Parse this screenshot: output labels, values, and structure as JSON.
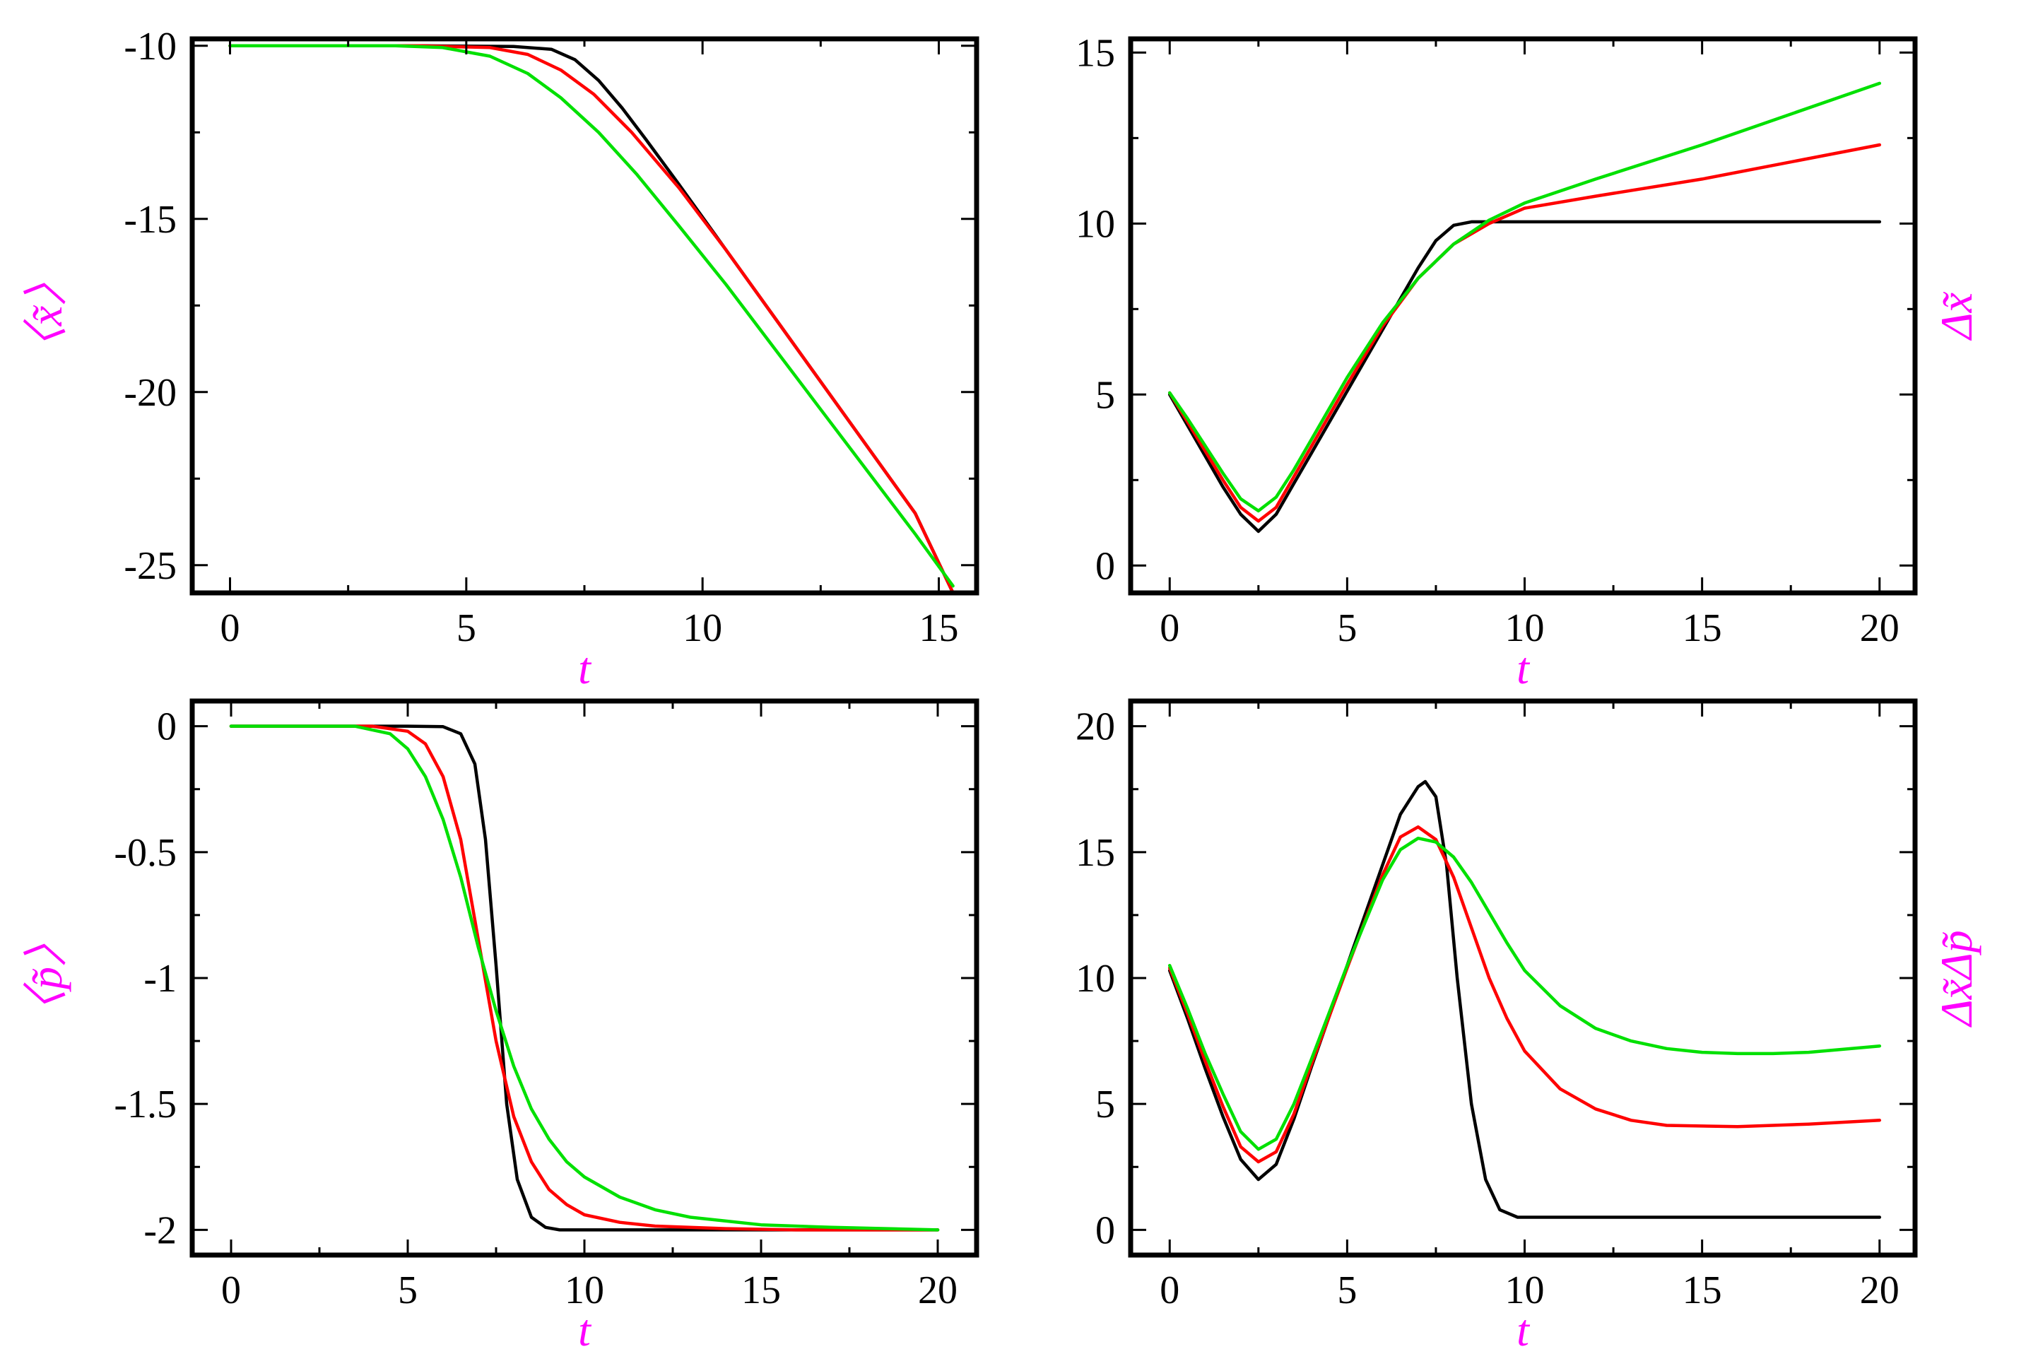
{
  "label_color": "#ff00ff",
  "series_colors": [
    "#000000",
    "#ff0000",
    "#00e000"
  ],
  "chart_data": [
    {
      "type": "line",
      "panel": "top-left",
      "xlabel": "t",
      "ylabel": "〈x̃〉",
      "ylabel_side": "left",
      "xlim": [
        -0.8,
        15.8
      ],
      "ylim": [
        -25.8,
        -9.8
      ],
      "xticks": [
        0,
        5,
        10,
        15
      ],
      "yticks": [
        -10,
        -15,
        -20,
        -25
      ],
      "grid": false,
      "series": [
        {
          "x": [
            0,
            4,
            6,
            6.8,
            7.3,
            7.8,
            8.3,
            8.8,
            9.5,
            10.5,
            11.5,
            12.5,
            13.5,
            14.5,
            15.3
          ],
          "y": [
            -10,
            -10,
            -10.02,
            -10.1,
            -10.4,
            -11.0,
            -11.8,
            -12.7,
            -14.0,
            -15.9,
            -17.8,
            -19.7,
            -21.6,
            -23.5,
            -25.8
          ]
        },
        {
          "x": [
            0,
            4,
            5.5,
            6.3,
            7,
            7.7,
            8.5,
            9.5,
            10.5,
            11.5,
            12.5,
            13.5,
            14.5,
            15.3
          ],
          "y": [
            -10,
            -10,
            -10.05,
            -10.25,
            -10.7,
            -11.4,
            -12.5,
            -14.1,
            -15.9,
            -17.8,
            -19.7,
            -21.6,
            -23.5,
            -25.8
          ]
        },
        {
          "x": [
            0,
            3.5,
            4.5,
            5.5,
            6.3,
            7,
            7.8,
            8.6,
            9.5,
            10.5,
            11.5,
            12.5,
            13.5,
            14.5,
            15.3
          ],
          "y": [
            -10,
            -10,
            -10.05,
            -10.3,
            -10.8,
            -11.5,
            -12.5,
            -13.7,
            -15.2,
            -16.9,
            -18.7,
            -20.5,
            -22.3,
            -24.1,
            -25.6
          ]
        }
      ]
    },
    {
      "type": "line",
      "panel": "top-right",
      "xlabel": "t",
      "ylabel": "Δx̃",
      "ylabel_side": "right",
      "xlim": [
        -1.1,
        21
      ],
      "ylim": [
        -0.8,
        15.4
      ],
      "xticks": [
        0,
        5,
        10,
        15,
        20
      ],
      "yticks": [
        0,
        5,
        10,
        15
      ],
      "grid": false,
      "series": [
        {
          "x": [
            0,
            0.5,
            1,
            1.5,
            2,
            2.5,
            3,
            3.5,
            4,
            5,
            6,
            7,
            7.5,
            8,
            8.5,
            9,
            10,
            15,
            20
          ],
          "y": [
            5.0,
            4.1,
            3.2,
            2.3,
            1.5,
            1.0,
            1.5,
            2.4,
            3.3,
            5.1,
            6.9,
            8.7,
            9.5,
            9.95,
            10.05,
            10.05,
            10.05,
            10.05,
            10.05
          ]
        },
        {
          "x": [
            0,
            0.5,
            1,
            1.5,
            2,
            2.5,
            3,
            3.5,
            4,
            5,
            6,
            7,
            8,
            9,
            10,
            12,
            15,
            20
          ],
          "y": [
            5.05,
            4.2,
            3.35,
            2.5,
            1.7,
            1.3,
            1.7,
            2.6,
            3.5,
            5.3,
            7.0,
            8.4,
            9.4,
            10.0,
            10.45,
            10.8,
            11.3,
            12.3
          ]
        },
        {
          "x": [
            0,
            0.5,
            1,
            1.5,
            2,
            2.5,
            3,
            3.5,
            4,
            5,
            6,
            7,
            8,
            9,
            10,
            12,
            15,
            20
          ],
          "y": [
            5.05,
            4.3,
            3.5,
            2.7,
            1.95,
            1.6,
            2.0,
            2.8,
            3.7,
            5.5,
            7.1,
            8.4,
            9.4,
            10.1,
            10.6,
            11.3,
            12.3,
            14.1
          ]
        }
      ]
    },
    {
      "type": "line",
      "panel": "bottom-left",
      "xlabel": "t",
      "ylabel": "〈p̃〉",
      "ylabel_side": "left",
      "xlim": [
        -1.1,
        21.1
      ],
      "ylim": [
        -2.1,
        0.1
      ],
      "xticks": [
        0,
        5,
        10,
        15,
        20
      ],
      "yticks": [
        0,
        -0.5,
        -1,
        -1.5,
        -2
      ],
      "ytick_labels": [
        "0",
        "-0.5",
        "-1",
        "-1.5",
        "-2"
      ],
      "grid": false,
      "series": [
        {
          "x": [
            0,
            5,
            6,
            6.5,
            6.9,
            7.2,
            7.5,
            7.8,
            8.1,
            8.5,
            8.9,
            9.3,
            10,
            15,
            20
          ],
          "y": [
            0,
            0,
            -0.002,
            -0.03,
            -0.15,
            -0.45,
            -0.95,
            -1.5,
            -1.8,
            -1.95,
            -1.99,
            -2.0,
            -2.0,
            -2.0,
            -2.0
          ]
        },
        {
          "x": [
            0,
            4,
            5,
            5.5,
            6,
            6.5,
            7,
            7.5,
            8,
            8.5,
            9,
            9.5,
            10,
            11,
            12,
            14,
            16,
            20
          ],
          "y": [
            0,
            0,
            -0.02,
            -0.07,
            -0.2,
            -0.45,
            -0.85,
            -1.25,
            -1.55,
            -1.73,
            -1.84,
            -1.9,
            -1.94,
            -1.97,
            -1.985,
            -1.995,
            -2.0,
            -2.0
          ]
        },
        {
          "x": [
            0,
            3.5,
            4.5,
            5,
            5.5,
            6,
            6.5,
            7,
            7.5,
            8,
            8.5,
            9,
            9.5,
            10,
            11,
            12,
            13,
            15,
            17,
            20
          ],
          "y": [
            0,
            0,
            -0.03,
            -0.09,
            -0.2,
            -0.37,
            -0.6,
            -0.88,
            -1.13,
            -1.35,
            -1.52,
            -1.64,
            -1.73,
            -1.79,
            -1.87,
            -1.92,
            -1.95,
            -1.98,
            -1.99,
            -2.0
          ]
        }
      ]
    },
    {
      "type": "line",
      "panel": "bottom-right",
      "xlabel": "t",
      "ylabel": "Δx̃Δp̃",
      "ylabel_side": "right",
      "xlim": [
        -1.1,
        21
      ],
      "ylim": [
        -1.0,
        21.0
      ],
      "xticks": [
        0,
        5,
        10,
        15,
        20
      ],
      "yticks": [
        0,
        5,
        10,
        15,
        20
      ],
      "grid": false,
      "series": [
        {
          "x": [
            0,
            0.5,
            1,
            1.5,
            2,
            2.5,
            3,
            3.5,
            4,
            5,
            6,
            6.5,
            7,
            7.2,
            7.5,
            7.8,
            8.1,
            8.5,
            8.9,
            9.3,
            9.8,
            10.5,
            15,
            20
          ],
          "y": [
            10.3,
            8.4,
            6.4,
            4.5,
            2.8,
            2.0,
            2.6,
            4.4,
            6.5,
            10.5,
            14.5,
            16.5,
            17.6,
            17.8,
            17.2,
            14.5,
            10.0,
            5.0,
            2.0,
            0.8,
            0.5,
            0.5,
            0.5,
            0.5
          ]
        },
        {
          "x": [
            0,
            0.5,
            1,
            1.5,
            2,
            2.5,
            3,
            3.5,
            4,
            5,
            6,
            6.5,
            7,
            7.5,
            8,
            8.5,
            9,
            9.5,
            10,
            11,
            12,
            13,
            14,
            16,
            18,
            20
          ],
          "y": [
            10.4,
            8.6,
            6.7,
            4.9,
            3.3,
            2.7,
            3.1,
            4.6,
            6.6,
            10.4,
            14.1,
            15.6,
            16.0,
            15.5,
            14.0,
            12.0,
            10.0,
            8.4,
            7.1,
            5.6,
            4.8,
            4.35,
            4.15,
            4.1,
            4.2,
            4.35
          ]
        },
        {
          "x": [
            0,
            0.5,
            1,
            1.5,
            2,
            2.5,
            3,
            3.5,
            4,
            5,
            6,
            6.5,
            7,
            7.5,
            8,
            8.5,
            9,
            9.5,
            10,
            11,
            12,
            13,
            14,
            15,
            16,
            17,
            18,
            20
          ],
          "y": [
            10.5,
            8.8,
            7.0,
            5.4,
            3.9,
            3.2,
            3.6,
            5.0,
            6.8,
            10.5,
            13.9,
            15.1,
            15.55,
            15.4,
            14.8,
            13.8,
            12.6,
            11.4,
            10.3,
            8.9,
            8.0,
            7.5,
            7.2,
            7.05,
            7.0,
            7.0,
            7.05,
            7.3
          ]
        }
      ]
    }
  ]
}
